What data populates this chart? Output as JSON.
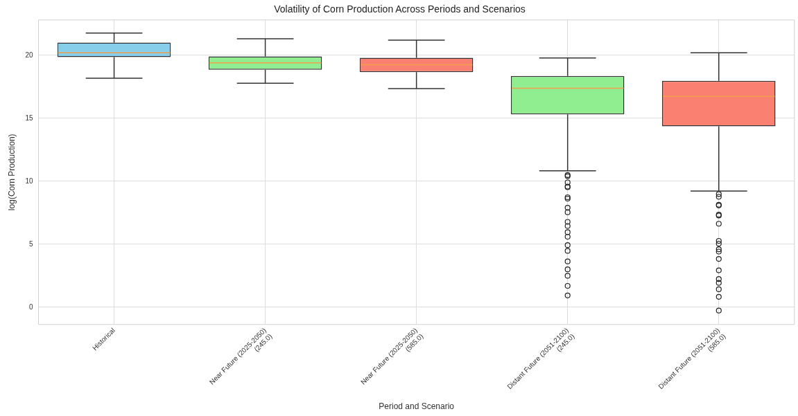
{
  "chart_data": {
    "type": "box",
    "title": "Volatility of Corn Production Across Periods and Scenarios",
    "xlabel": "Period and Scenario",
    "ylabel": "log(Corn Production)",
    "categories": [
      "Historical",
      "Near Future (2025-2050)\n(245.0)",
      "Near Future (2025-2050)\n(585.0)",
      "Distant Future (2051-2100)\n(245.0)",
      "Distant Future (2051-2100)\n(585.0)"
    ],
    "colors": [
      "#87ceeb",
      "#90ee90",
      "#fa8072",
      "#90ee90",
      "#fa8072"
    ],
    "boxes": [
      {
        "low": 18.18,
        "q1": 19.85,
        "median": 20.2,
        "q3": 21.0,
        "high": 21.76
      },
      {
        "low": 17.78,
        "q1": 18.85,
        "median": 19.4,
        "q3": 19.9,
        "high": 21.3
      },
      {
        "low": 17.35,
        "q1": 18.66,
        "median": 19.24,
        "q3": 19.8,
        "high": 21.19
      },
      {
        "low": 10.83,
        "q1": 15.31,
        "median": 17.38,
        "q3": 18.35,
        "high": 19.78,
        "outliers": [
          10.49,
          10.4,
          9.91,
          9.58,
          9.53,
          8.73,
          8.62,
          7.9,
          7.54,
          6.78,
          6.45,
          5.96,
          5.6,
          4.93,
          4.48,
          3.64,
          3.01,
          2.5,
          1.7,
          0.94
        ]
      },
      {
        "low": 9.22,
        "q1": 14.36,
        "median": 16.74,
        "q3": 17.97,
        "high": 20.2,
        "outliers": [
          8.98,
          8.77,
          8.14,
          8.08,
          7.35,
          7.28,
          6.63,
          5.27,
          5.05,
          4.6,
          4.42,
          3.84,
          2.93,
          2.24,
          1.94,
          1.43,
          0.83,
          -0.26
        ]
      }
    ],
    "ylim": [
      -1.36,
      22.8
    ],
    "yticks": [
      0,
      5,
      10,
      15,
      20
    ],
    "grid": true,
    "legend": false
  }
}
